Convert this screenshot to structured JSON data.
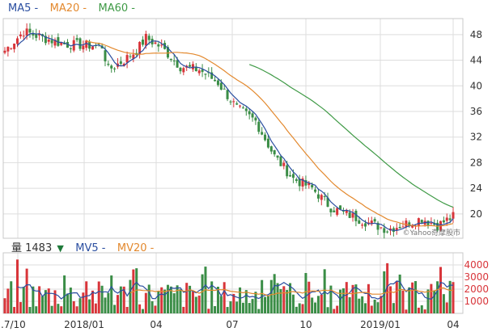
{
  "legend_top": {
    "ma5": "MA5 -",
    "ma20": "MA20 -",
    "ma60": "MA60 -"
  },
  "legend_bottom": {
    "vol_label": "量 1483",
    "vol_arrow": "▼",
    "mv5": "MV5 -",
    "mv20": "MV20 -"
  },
  "watermark": "©Yahoo奇摩股市",
  "colors": {
    "up": "#d8353a",
    "down": "#3a8d46",
    "ma5": "#2a4ea0",
    "ma20": "#e3892e",
    "ma60": "#3f9a46",
    "grid": "#dddddd"
  },
  "chart_data": [
    {
      "type": "candlestick",
      "x_ticks": [
        ".7/10",
        "2018/01",
        "04",
        "07",
        "10",
        "2019/01",
        "04"
      ],
      "y_ticks": [
        20,
        24,
        28,
        32,
        36,
        40,
        44,
        48
      ],
      "ylim": [
        16.2,
        50.5
      ],
      "grid": true,
      "series_names": [
        "MA5",
        "MA20",
        "MA60"
      ]
    },
    {
      "type": "bar",
      "x_ticks": [
        ".7/10",
        "2018/01",
        "04",
        "07",
        "10",
        "2019/01",
        "04"
      ],
      "y_ticks": [
        1000,
        2000,
        3000,
        4000
      ],
      "ylim": [
        0,
        5000
      ],
      "last_volume": 1483,
      "series_names": [
        "MV5",
        "MV20"
      ]
    }
  ]
}
